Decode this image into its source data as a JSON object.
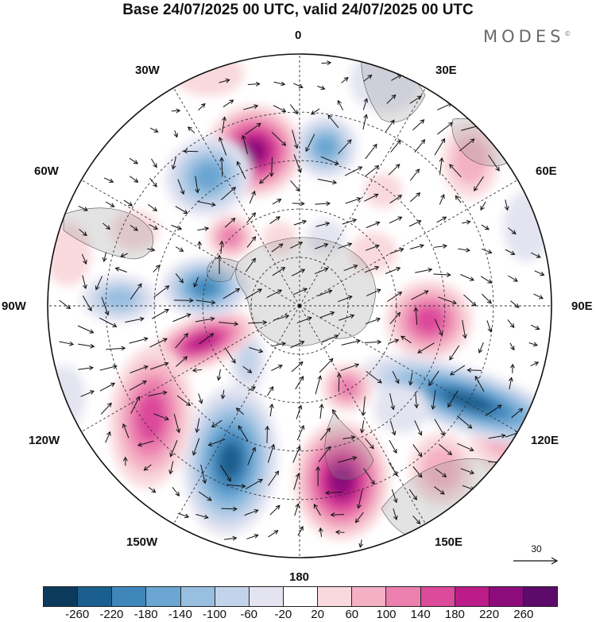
{
  "title": "Base 24/07/2025 00 UTC, valid 24/07/2025 00 UTC",
  "brand": "MODES",
  "brand_mark": "©",
  "longitude_labels": {
    "lon_0": "0",
    "lon_30e": "30E",
    "lon_60e": "60E",
    "lon_90e": "90E",
    "lon_120e": "120E",
    "lon_150e": "150E",
    "lon_180": "180",
    "lon_150w": "150W",
    "lon_120w": "120W",
    "lon_90w": "90W",
    "lon_60w": "60W",
    "lon_30w": "30W"
  },
  "reference_vector": "30",
  "colorbar": {
    "colors": [
      "#0c3a5c",
      "#1a5f8e",
      "#3f86bb",
      "#6aa6d1",
      "#98bfe0",
      "#c3d3ea",
      "#e4e4f1",
      "#ffffff",
      "#f9d9dd",
      "#f4b0c4",
      "#eb7fae",
      "#dc4a9b",
      "#bb1c88",
      "#8c0c7c",
      "#5c0b6b"
    ],
    "ticks": [
      "-260",
      "-220",
      "-180",
      "-140",
      "-100",
      "-60",
      "-20",
      "20",
      "60",
      "100",
      "140",
      "180",
      "220",
      "260"
    ]
  }
}
